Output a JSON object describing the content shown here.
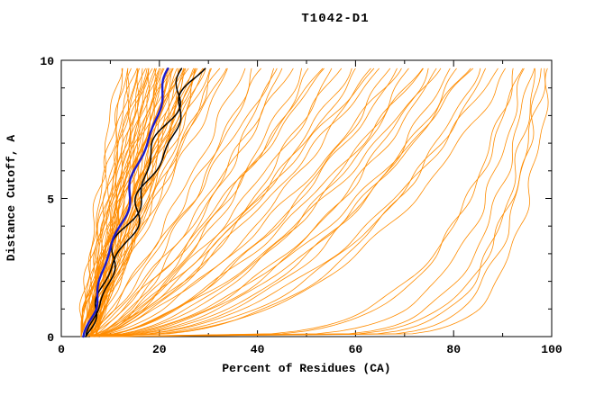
{
  "chart_data": {
    "type": "line",
    "title": "T1042-D1",
    "xlabel": "Percent of Residues (CA)",
    "ylabel": "Distance Cutoff, A",
    "xlim": [
      0,
      100
    ],
    "ylim": [
      0,
      10
    ],
    "x_ticks": [
      0,
      20,
      40,
      60,
      80,
      100
    ],
    "x_minor_ticks": [
      10,
      30,
      50,
      70,
      90
    ],
    "y_ticks": [
      0,
      5,
      10
    ],
    "y_minor_ticks": [
      1,
      2,
      3,
      4,
      6,
      7,
      8,
      9
    ],
    "grid": false,
    "legend": "none",
    "colors": {
      "models": "#ff8c00",
      "highlight_black": "#000000",
      "highlight_blue": "#1a1acd",
      "axis": "#000000",
      "background": "#ffffff"
    },
    "series_note": "Each curve is [x_at_y0, x_at_y10, shape_exponent, seed]; x = percent of residues within distance cutoff y",
    "orange_curves": [
      [
        4,
        12,
        1.2,
        1
      ],
      [
        4,
        13,
        1.1,
        2
      ],
      [
        4,
        14,
        1.3,
        3
      ],
      [
        5,
        14,
        0.9,
        4
      ],
      [
        4,
        15,
        1.0,
        5
      ],
      [
        5,
        15,
        1.2,
        6
      ],
      [
        4,
        16,
        1.1,
        7
      ],
      [
        5,
        16,
        0.95,
        8
      ],
      [
        4,
        17,
        1.25,
        9
      ],
      [
        5,
        17,
        1.05,
        10
      ],
      [
        6,
        17,
        0.9,
        11
      ],
      [
        4,
        18,
        1.15,
        12
      ],
      [
        5,
        18,
        1.0,
        13
      ],
      [
        6,
        18,
        1.3,
        14
      ],
      [
        4,
        19,
        0.95,
        15
      ],
      [
        5,
        19,
        1.1,
        16
      ],
      [
        6,
        19,
        1.2,
        17
      ],
      [
        4,
        20,
        1.0,
        18
      ],
      [
        5,
        20,
        1.15,
        19
      ],
      [
        6,
        20,
        0.9,
        20
      ],
      [
        5,
        21,
        1.05,
        21
      ],
      [
        6,
        21,
        1.2,
        22
      ],
      [
        4,
        21,
        0.95,
        23
      ],
      [
        5,
        22,
        1.1,
        24
      ],
      [
        6,
        22,
        1.0,
        25
      ],
      [
        7,
        22,
        1.25,
        26
      ],
      [
        5,
        23,
        0.9,
        27
      ],
      [
        6,
        23,
        1.05,
        28
      ],
      [
        4,
        23,
        1.15,
        29
      ],
      [
        5,
        24,
        1.0,
        30
      ],
      [
        6,
        24,
        1.2,
        31
      ],
      [
        7,
        24,
        0.95,
        32
      ],
      [
        5,
        25,
        1.1,
        33
      ],
      [
        6,
        25,
        1.0,
        34
      ],
      [
        4,
        25,
        1.3,
        35
      ],
      [
        5,
        26,
        0.95,
        36
      ],
      [
        6,
        26,
        1.1,
        37
      ],
      [
        7,
        26,
        1.05,
        38
      ],
      [
        5,
        27,
        1.2,
        39
      ],
      [
        6,
        27,
        0.9,
        40
      ],
      [
        5,
        28,
        1.05,
        41
      ],
      [
        6,
        28,
        1.15,
        42
      ],
      [
        7,
        28,
        1.0,
        43
      ],
      [
        5,
        29,
        0.95,
        44
      ],
      [
        6,
        29,
        1.1,
        45
      ],
      [
        5,
        30,
        1.2,
        46
      ],
      [
        6,
        30,
        1.0,
        47
      ],
      [
        7,
        31,
        1.1,
        48
      ],
      [
        5,
        32,
        0.9,
        49
      ],
      [
        6,
        33,
        1.05,
        50
      ],
      [
        7,
        34,
        1.15,
        51
      ],
      [
        6,
        35,
        1.0,
        52
      ],
      [
        5,
        38,
        0.8,
        53
      ],
      [
        6,
        40,
        0.7,
        54
      ],
      [
        5,
        42,
        0.85,
        55
      ],
      [
        6,
        44,
        0.6,
        56
      ],
      [
        7,
        46,
        0.75,
        57
      ],
      [
        5,
        48,
        0.8,
        58
      ],
      [
        6,
        50,
        0.65,
        59
      ],
      [
        7,
        52,
        0.7,
        60
      ],
      [
        5,
        54,
        0.8,
        61
      ],
      [
        6,
        56,
        0.6,
        62
      ],
      [
        7,
        58,
        0.75,
        63
      ],
      [
        6,
        60,
        0.65,
        64
      ],
      [
        5,
        62,
        0.7,
        65
      ],
      [
        6,
        64,
        0.6,
        66
      ],
      [
        7,
        66,
        0.75,
        67
      ],
      [
        6,
        68,
        0.55,
        68
      ],
      [
        5,
        70,
        0.65,
        69
      ],
      [
        6,
        45,
        0.9,
        70
      ],
      [
        7,
        55,
        0.85,
        71
      ],
      [
        6,
        65,
        0.8,
        72
      ],
      [
        6,
        72,
        0.5,
        73
      ],
      [
        7,
        74,
        0.55,
        74
      ],
      [
        6,
        76,
        0.45,
        75
      ],
      [
        7,
        78,
        0.5,
        76
      ],
      [
        6,
        80,
        0.4,
        77
      ],
      [
        7,
        82,
        0.45,
        78
      ],
      [
        8,
        84,
        0.5,
        79
      ],
      [
        6,
        86,
        0.35,
        80
      ],
      [
        7,
        88,
        0.4,
        81
      ],
      [
        8,
        90,
        0.45,
        82
      ],
      [
        6,
        92,
        0.38,
        83
      ],
      [
        7,
        85,
        0.55,
        84
      ],
      [
        6,
        78,
        0.6,
        85
      ],
      [
        7,
        70,
        0.6,
        86
      ],
      [
        8,
        75,
        0.65,
        87
      ],
      [
        8,
        93,
        0.18,
        88
      ],
      [
        9,
        95,
        0.15,
        89
      ],
      [
        8,
        96,
        0.12,
        90
      ],
      [
        9,
        97,
        0.1,
        91
      ],
      [
        10,
        98,
        0.09,
        92
      ],
      [
        9,
        99,
        0.12,
        93
      ],
      [
        8,
        100,
        0.08,
        94
      ],
      [
        9,
        94,
        0.2,
        95
      ]
    ],
    "black_curves": [
      [
        5,
        26,
        1.0,
        201
      ],
      [
        5,
        29,
        1.05,
        202
      ]
    ],
    "blue_curves": [
      [
        4.5,
        23,
        1.02,
        301
      ]
    ]
  },
  "layout_text": {
    "note": "static plot image, no interactive widgets"
  }
}
